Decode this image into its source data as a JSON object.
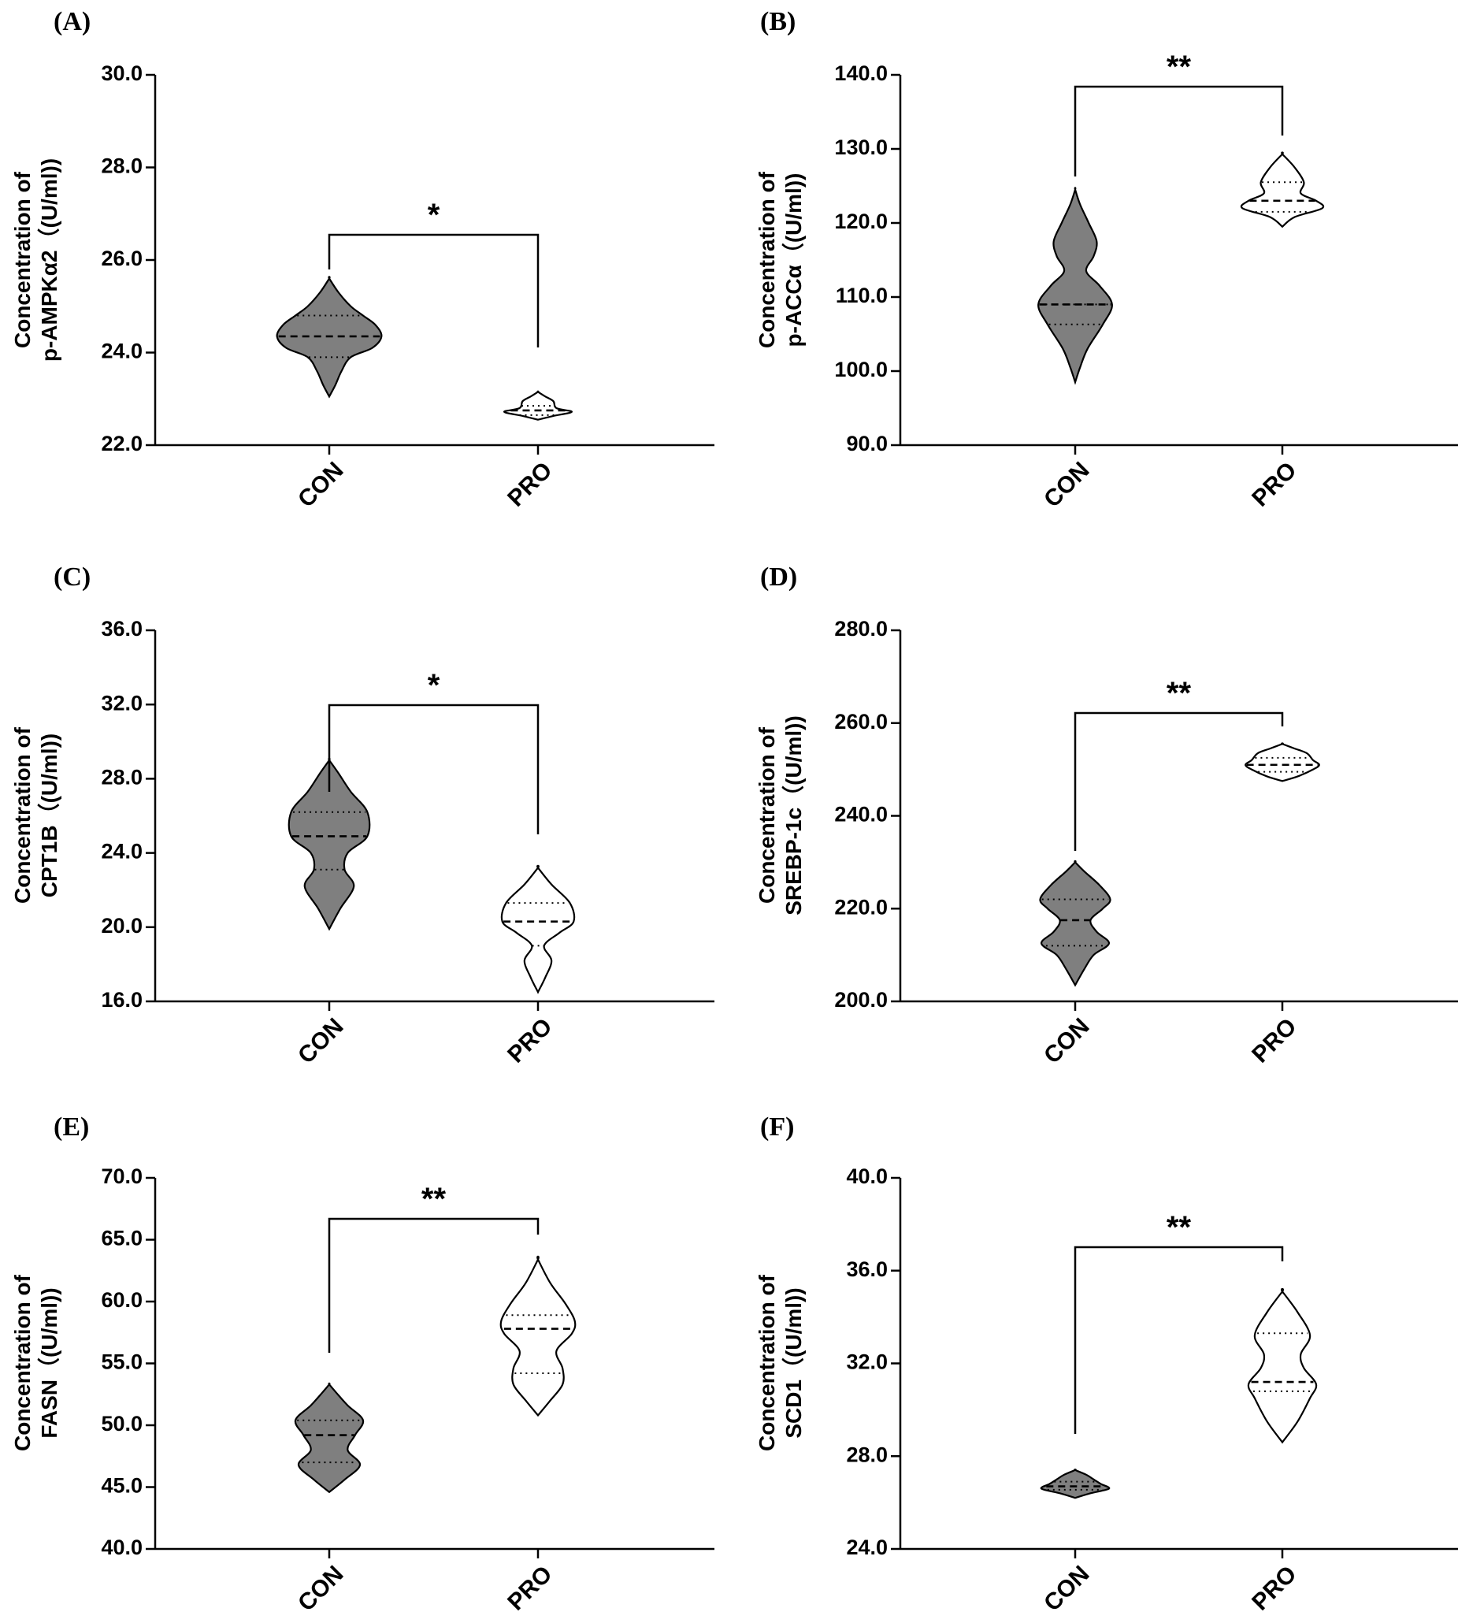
{
  "figure": {
    "chart_data": [
      {
        "panel": "(A)",
        "type": "violin",
        "ylabel": [
          "Concentration of",
          "p-AMPKα2（(U/ml))"
        ],
        "ylim": [
          22,
          30
        ],
        "yticks": [
          "22.0",
          "24.0",
          "26.0",
          "28.0",
          "30.0"
        ],
        "categories": [
          "CON",
          "PRO"
        ],
        "significance": "*",
        "groups": [
          {
            "name": "CON",
            "fill": "#7f7f7f",
            "median": 24.35,
            "q1": 23.9,
            "q3": 24.8,
            "shape": [
              [
                23.05,
                0
              ],
              [
                23.3,
                0.1
              ],
              [
                23.6,
                0.2
              ],
              [
                23.9,
                0.35
              ],
              [
                24.1,
                0.7
              ],
              [
                24.35,
                0.85
              ],
              [
                24.6,
                0.75
              ],
              [
                24.8,
                0.55
              ],
              [
                25.0,
                0.35
              ],
              [
                25.3,
                0.15
              ],
              [
                25.6,
                0
              ]
            ]
          },
          {
            "name": "PRO",
            "fill": "#ffffff",
            "median": 22.75,
            "q1": 22.65,
            "q3": 22.85,
            "shape": [
              [
                22.55,
                0
              ],
              [
                22.63,
                0.25
              ],
              [
                22.72,
                0.55
              ],
              [
                22.8,
                0.3
              ],
              [
                22.95,
                0.25
              ],
              [
                23.05,
                0.12
              ],
              [
                23.15,
                0
              ]
            ]
          }
        ]
      },
      {
        "panel": "(B)",
        "type": "violin",
        "ylabel": [
          "Concentration of",
          "p-ACCα（(U/ml))"
        ],
        "ylim": [
          90,
          140
        ],
        "yticks": [
          "90.0",
          "100.0",
          "110.0",
          "120.0",
          "130.0",
          "140.0"
        ],
        "categories": [
          "CON",
          "PRO"
        ],
        "significance": "**",
        "groups": [
          {
            "name": "CON",
            "fill": "#7f7f7f",
            "median": 109.0,
            "q1": 106.3,
            "q3": 109.0,
            "shape": [
              [
                98.5,
                0
              ],
              [
                100.5,
                0.08
              ],
              [
                103,
                0.2
              ],
              [
                106.3,
                0.45
              ],
              [
                109,
                0.6
              ],
              [
                111.5,
                0.4
              ],
              [
                113.5,
                0.18
              ],
              [
                115.5,
                0.3
              ],
              [
                117.5,
                0.35
              ],
              [
                120,
                0.22
              ],
              [
                122.5,
                0.08
              ],
              [
                124.5,
                0
              ]
            ]
          },
          {
            "name": "PRO",
            "fill": "#ffffff",
            "median": 123.0,
            "q1": 121.5,
            "q3": 125.5,
            "shape": [
              [
                119.5,
                0
              ],
              [
                120.8,
                0.2
              ],
              [
                122.0,
                0.65
              ],
              [
                123.0,
                0.55
              ],
              [
                124.0,
                0.3
              ],
              [
                125.5,
                0.35
              ],
              [
                127.5,
                0.2
              ],
              [
                129.3,
                0
              ]
            ]
          }
        ]
      },
      {
        "panel": "(C)",
        "type": "violin",
        "ylabel": [
          "Concentration of",
          "CPT1B（(U/ml))"
        ],
        "ylim": [
          16,
          36
        ],
        "yticks": [
          "16.0",
          "20.0",
          "24.0",
          "28.0",
          "32.0",
          "36.0"
        ],
        "categories": [
          "CON",
          "PRO"
        ],
        "significance": "*",
        "groups": [
          {
            "name": "CON",
            "fill": "#7f7f7f",
            "median": 24.9,
            "q1": 23.1,
            "q3": 26.2,
            "shape": [
              [
                19.9,
                0
              ],
              [
                21.0,
                0.18
              ],
              [
                22.2,
                0.4
              ],
              [
                23.1,
                0.25
              ],
              [
                24.0,
                0.3
              ],
              [
                24.9,
                0.62
              ],
              [
                26.2,
                0.62
              ],
              [
                27.3,
                0.35
              ],
              [
                28.3,
                0.15
              ],
              [
                29.0,
                0
              ]
            ]
          },
          {
            "name": "PRO",
            "fill": "#ffffff",
            "median": 20.3,
            "q1": 19.0,
            "q3": 21.3,
            "shape": [
              [
                16.5,
                0
              ],
              [
                17.3,
                0.12
              ],
              [
                18.2,
                0.22
              ],
              [
                19.0,
                0.1
              ],
              [
                19.7,
                0.35
              ],
              [
                20.3,
                0.58
              ],
              [
                21.3,
                0.52
              ],
              [
                22.3,
                0.22
              ],
              [
                23.2,
                0
              ]
            ]
          }
        ]
      },
      {
        "panel": "(D)",
        "type": "violin",
        "ylabel": [
          "Concentration of",
          "SREBP-1c（(U/ml))"
        ],
        "ylim": [
          200,
          280
        ],
        "yticks": [
          "200.0",
          "220.0",
          "240.0",
          "260.0",
          "280.0"
        ],
        "categories": [
          "CON",
          "PRO"
        ],
        "significance": "**",
        "groups": [
          {
            "name": "CON",
            "fill": "#7f7f7f",
            "median": 217.5,
            "q1": 212.0,
            "q3": 222.0,
            "shape": [
              [
                203.5,
                0
              ],
              [
                207,
                0.15
              ],
              [
                210,
                0.3
              ],
              [
                212.5,
                0.55
              ],
              [
                215,
                0.35
              ],
              [
                217.5,
                0.25
              ],
              [
                220,
                0.45
              ],
              [
                222,
                0.57
              ],
              [
                225,
                0.4
              ],
              [
                228,
                0.15
              ],
              [
                230,
                0
              ]
            ]
          },
          {
            "name": "PRO",
            "fill": "#ffffff",
            "median": 251.0,
            "q1": 249.5,
            "q3": 252.5,
            "shape": [
              [
                247.5,
                0
              ],
              [
                248.5,
                0.25
              ],
              [
                250,
                0.5
              ],
              [
                251,
                0.6
              ],
              [
                252,
                0.5
              ],
              [
                253.5,
                0.4
              ],
              [
                254.5,
                0.2
              ],
              [
                255.5,
                0
              ]
            ]
          }
        ]
      },
      {
        "panel": "(E)",
        "type": "violin",
        "ylabel": [
          "Concentration of",
          "FASN（(U/ml))"
        ],
        "ylim": [
          40,
          70
        ],
        "yticks": [
          "40.0",
          "45.0",
          "50.0",
          "55.0",
          "60.0",
          "65.0",
          "70.0"
        ],
        "categories": [
          "CON",
          "PRO"
        ],
        "significance": "**",
        "groups": [
          {
            "name": "CON",
            "fill": "#7f7f7f",
            "median": 49.2,
            "q1": 47.0,
            "q3": 50.4,
            "shape": [
              [
                44.6,
                0
              ],
              [
                45.6,
                0.25
              ],
              [
                46.8,
                0.5
              ],
              [
                48.0,
                0.3
              ],
              [
                49.2,
                0.42
              ],
              [
                50.4,
                0.55
              ],
              [
                51.6,
                0.3
              ],
              [
                52.6,
                0.12
              ],
              [
                53.3,
                0
              ]
            ]
          },
          {
            "name": "PRO",
            "fill": "#ffffff",
            "median": 57.8,
            "q1": 54.2,
            "q3": 58.9,
            "shape": [
              [
                50.8,
                0
              ],
              [
                52.0,
                0.2
              ],
              [
                53.3,
                0.4
              ],
              [
                54.6,
                0.4
              ],
              [
                56.0,
                0.3
              ],
              [
                57.4,
                0.55
              ],
              [
                58.4,
                0.6
              ],
              [
                59.8,
                0.45
              ],
              [
                61.5,
                0.2
              ],
              [
                63.4,
                0
              ]
            ]
          }
        ]
      },
      {
        "panel": "(F)",
        "type": "violin",
        "ylabel": [
          "Concentration of",
          "SCD1（(U/ml))"
        ],
        "ylim": [
          24,
          40
        ],
        "yticks": [
          "24.0",
          "28.0",
          "32.0",
          "36.0",
          "40.0"
        ],
        "categories": [
          "CON",
          "PRO"
        ],
        "significance": "**",
        "groups": [
          {
            "name": "CON",
            "fill": "#7f7f7f",
            "median": 26.7,
            "q1": 26.55,
            "q3": 26.9,
            "shape": [
              [
                26.2,
                0
              ],
              [
                26.4,
                0.25
              ],
              [
                26.6,
                0.55
              ],
              [
                26.8,
                0.42
              ],
              [
                27.0,
                0.3
              ],
              [
                27.2,
                0.18
              ],
              [
                27.4,
                0
              ]
            ]
          },
          {
            "name": "PRO",
            "fill": "#ffffff",
            "median": 31.2,
            "q1": 30.8,
            "q3": 33.3,
            "shape": [
              [
                28.6,
                0
              ],
              [
                29.5,
                0.25
              ],
              [
                30.5,
                0.45
              ],
              [
                31.1,
                0.55
              ],
              [
                31.8,
                0.35
              ],
              [
                32.4,
                0.3
              ],
              [
                33.2,
                0.45
              ],
              [
                34.2,
                0.25
              ],
              [
                35.1,
                0
              ]
            ]
          }
        ]
      }
    ]
  }
}
